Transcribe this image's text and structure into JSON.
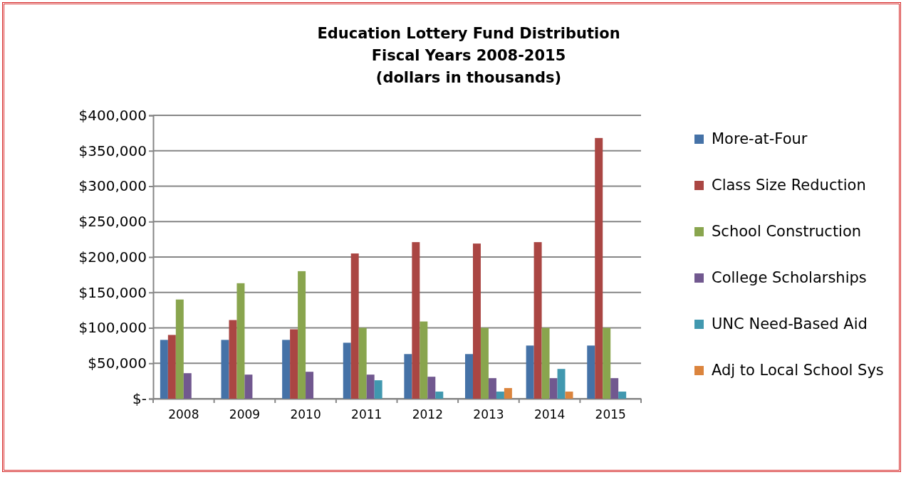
{
  "chart_data": {
    "type": "bar",
    "title": "Education Lottery Fund Distribution\nFiscal Years 2008-2015\n(dollars in thousands)",
    "categories": [
      "2008",
      "2009",
      "2010",
      "2011",
      "2012",
      "2013",
      "2014",
      "2015"
    ],
    "series": [
      {
        "name": "More-at-Four",
        "color": "#4572a7",
        "values": [
          83000,
          83000,
          83000,
          79000,
          63000,
          63000,
          75000,
          75000
        ]
      },
      {
        "name": "Class Size Reduction",
        "color": "#aa4643",
        "values": [
          90000,
          111000,
          98000,
          205000,
          221000,
          219000,
          221000,
          368000
        ]
      },
      {
        "name": "School Construction",
        "color": "#89a54e",
        "values": [
          140000,
          163000,
          180000,
          100000,
          109000,
          100000,
          100000,
          100000
        ]
      },
      {
        "name": "College Scholarships",
        "color": "#71588f",
        "values": [
          36000,
          34000,
          38000,
          34000,
          31000,
          29000,
          29000,
          29000
        ]
      },
      {
        "name": "UNC Need-Based Aid",
        "color": "#4198af",
        "values": [
          null,
          null,
          null,
          26000,
          10000,
          10000,
          42000,
          10000
        ]
      },
      {
        "name": "Adj to Local School Sys",
        "color": "#db843d",
        "values": [
          null,
          null,
          null,
          null,
          null,
          15000,
          10000,
          null
        ]
      }
    ],
    "ylim": [
      0,
      400000
    ],
    "yticks": [
      {
        "value": 0,
        "label": "$-"
      },
      {
        "value": 50000,
        "label": "$50,000"
      },
      {
        "value": 100000,
        "label": "$100,000"
      },
      {
        "value": 150000,
        "label": "$150,000"
      },
      {
        "value": 200000,
        "label": "$200,000"
      },
      {
        "value": 250000,
        "label": "$250,000"
      },
      {
        "value": 300000,
        "label": "$300,000"
      },
      {
        "value": 350000,
        "label": "$350,000"
      },
      {
        "value": 400000,
        "label": "$400,000"
      }
    ],
    "grid": "y",
    "legend": "right"
  }
}
